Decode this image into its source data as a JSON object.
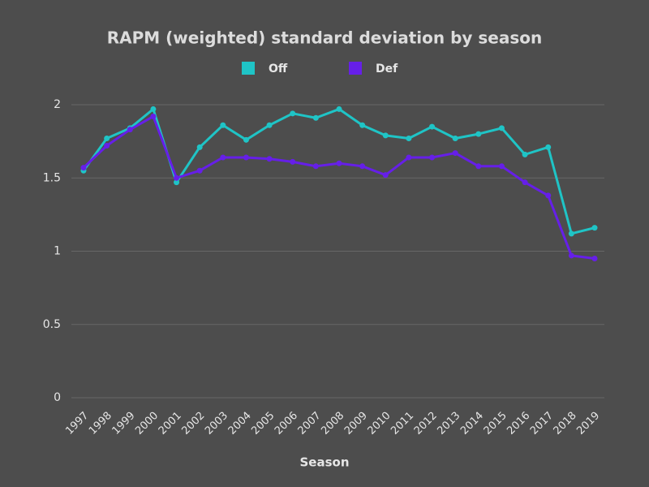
{
  "chart_data": {
    "type": "line",
    "title": "RAPM (weighted) standard deviation by season",
    "x_label": "Season",
    "categories": [
      "1997",
      "1998",
      "1999",
      "2000",
      "2001",
      "2002",
      "2003",
      "2004",
      "2005",
      "2006",
      "2007",
      "2008",
      "2009",
      "2010",
      "2011",
      "2012",
      "2013",
      "2014",
      "2015",
      "2016",
      "2017",
      "2018",
      "2019"
    ],
    "series": [
      {
        "name": "Off",
        "color": "#1fc4c6",
        "values": [
          1.55,
          1.77,
          1.84,
          1.97,
          1.47,
          1.71,
          1.86,
          1.76,
          1.86,
          1.94,
          1.91,
          1.97,
          1.86,
          1.79,
          1.77,
          1.85,
          1.77,
          1.8,
          1.84,
          1.66,
          1.71,
          1.12,
          1.16
        ]
      },
      {
        "name": "Def",
        "color": "#661fe8",
        "values": [
          1.57,
          1.72,
          1.83,
          1.92,
          1.5,
          1.55,
          1.64,
          1.64,
          1.63,
          1.61,
          1.58,
          1.6,
          1.58,
          1.52,
          1.64,
          1.64,
          1.67,
          1.58,
          1.58,
          1.47,
          1.38,
          0.97,
          0.95
        ]
      }
    ],
    "ylim": [
      0,
      2
    ],
    "yticks": [
      0,
      0.5,
      1,
      1.5,
      2
    ],
    "grid": true
  }
}
